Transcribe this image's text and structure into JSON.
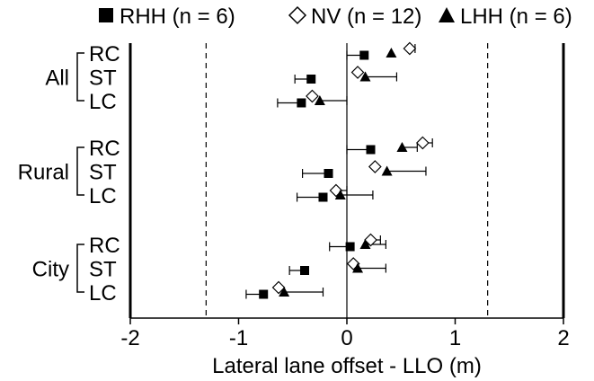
{
  "chart_data": {
    "type": "scatter",
    "subtype": "dot-plot-with-error-bars",
    "xlabel": "Lateral lane offset - LLO (m)",
    "xlim": [
      -2,
      2
    ],
    "xticks": [
      -2,
      -1,
      0,
      1,
      2
    ],
    "xtick_labels": [
      "-2",
      "-1",
      "0",
      "1",
      "2"
    ],
    "reference_lines": [
      -1.3,
      1.3
    ],
    "legend_position": "top",
    "groups": [
      {
        "label": "All",
        "rows": [
          "RC",
          "ST",
          "LC"
        ]
      },
      {
        "label": "Rural",
        "rows": [
          "RC",
          "ST",
          "LC"
        ]
      },
      {
        "label": "City",
        "rows": [
          "RC",
          "ST",
          "LC"
        ]
      }
    ],
    "series": [
      {
        "name": "RHH (n = 6)",
        "marker": "square-filled",
        "points": [
          {
            "group": "All",
            "row": "RC",
            "value": 0.16,
            "err_low": 0.0,
            "err_high": 0.16
          },
          {
            "group": "All",
            "row": "ST",
            "value": -0.33,
            "err_low": -0.48,
            "err_high": -0.33
          },
          {
            "group": "All",
            "row": "LC",
            "value": -0.42,
            "err_low": -0.64,
            "err_high": -0.42
          },
          {
            "group": "Rural",
            "row": "RC",
            "value": 0.22,
            "err_low": 0.0,
            "err_high": 0.22
          },
          {
            "group": "Rural",
            "row": "ST",
            "value": -0.17,
            "err_low": -0.41,
            "err_high": -0.17
          },
          {
            "group": "Rural",
            "row": "LC",
            "value": -0.22,
            "err_low": -0.46,
            "err_high": -0.22
          },
          {
            "group": "City",
            "row": "RC",
            "value": 0.03,
            "err_low": -0.16,
            "err_high": 0.03
          },
          {
            "group": "City",
            "row": "ST",
            "value": -0.39,
            "err_low": -0.53,
            "err_high": -0.39
          },
          {
            "group": "City",
            "row": "LC",
            "value": -0.77,
            "err_low": -0.93,
            "err_high": -0.77
          }
        ]
      },
      {
        "name": "NV (n = 12)",
        "marker": "diamond-open",
        "points": [
          {
            "group": "All",
            "row": "RC",
            "value": 0.58,
            "err_low": 0.58,
            "err_high": 0.63
          },
          {
            "group": "All",
            "row": "ST",
            "value": 0.1,
            "err_low": 0.1,
            "err_high": 0.1
          },
          {
            "group": "All",
            "row": "LC",
            "value": -0.32,
            "err_low": -0.32,
            "err_high": -0.32
          },
          {
            "group": "Rural",
            "row": "RC",
            "value": 0.7,
            "err_low": 0.7,
            "err_high": 0.79
          },
          {
            "group": "Rural",
            "row": "ST",
            "value": 0.26,
            "err_low": 0.26,
            "err_high": 0.26
          },
          {
            "group": "Rural",
            "row": "LC",
            "value": -0.1,
            "err_low": -0.1,
            "err_high": 0.0
          },
          {
            "group": "City",
            "row": "RC",
            "value": 0.22,
            "err_low": 0.22,
            "err_high": 0.31
          },
          {
            "group": "City",
            "row": "ST",
            "value": 0.06,
            "err_low": 0.06,
            "err_high": 0.06
          },
          {
            "group": "City",
            "row": "LC",
            "value": -0.63,
            "err_low": -0.63,
            "err_high": -0.63
          }
        ]
      },
      {
        "name": "LHH (n = 6)",
        "marker": "triangle-filled",
        "points": [
          {
            "group": "All",
            "row": "RC",
            "value": 0.41,
            "err_low": 0.41,
            "err_high": 0.41
          },
          {
            "group": "All",
            "row": "ST",
            "value": 0.17,
            "err_low": 0.17,
            "err_high": 0.46
          },
          {
            "group": "All",
            "row": "LC",
            "value": -0.25,
            "err_low": -0.25,
            "err_high": 0.0
          },
          {
            "group": "Rural",
            "row": "RC",
            "value": 0.51,
            "err_low": 0.51,
            "err_high": 0.65
          },
          {
            "group": "Rural",
            "row": "ST",
            "value": 0.37,
            "err_low": 0.37,
            "err_high": 0.73
          },
          {
            "group": "Rural",
            "row": "LC",
            "value": -0.06,
            "err_low": -0.06,
            "err_high": 0.24
          },
          {
            "group": "City",
            "row": "RC",
            "value": 0.17,
            "err_low": 0.17,
            "err_high": 0.36
          },
          {
            "group": "City",
            "row": "ST",
            "value": 0.1,
            "err_low": 0.1,
            "err_high": 0.36
          },
          {
            "group": "City",
            "row": "LC",
            "value": -0.58,
            "err_low": -0.58,
            "err_high": -0.22
          }
        ]
      }
    ]
  }
}
